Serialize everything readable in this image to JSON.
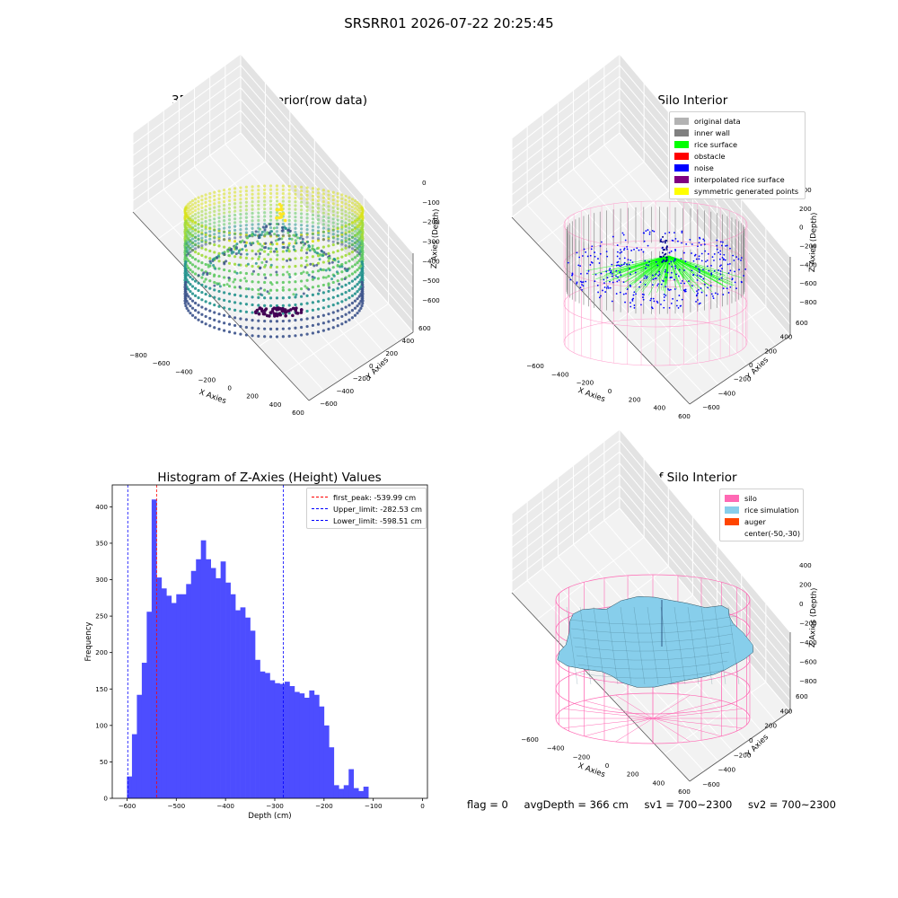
{
  "figure": {
    "suptitle": "SRSRR01 2026-07-22 20:25:45"
  },
  "panels": {
    "raw": {
      "title": "3D Plot of Silo Interior(row data)",
      "xlabel": "X Axies",
      "ylabel": "Y Axies",
      "zlabel": "Z Axies (Depth)",
      "xticks": [
        "−800",
        "−600",
        "−400",
        "−200",
        "0",
        "200",
        "400",
        "600"
      ],
      "yticks": [
        "−600",
        "−400",
        "−200",
        "0",
        "200",
        "400",
        "600"
      ],
      "zticks": [
        "0",
        "−100",
        "−200",
        "−300",
        "−400",
        "−500",
        "−600"
      ]
    },
    "classify": {
      "title": "3D classify of Silo Interior",
      "xlabel": "X Axies",
      "ylabel": "Y Axies",
      "zlabel": "Z Axies (Depth)",
      "xticks": [
        "−600",
        "−400",
        "−200",
        "0",
        "200",
        "400",
        "600"
      ],
      "yticks": [
        "−600",
        "−400",
        "−200",
        "0",
        "200",
        "400",
        "600"
      ],
      "zticks": [
        "400",
        "200",
        "0",
        "−200",
        "−400",
        "−600",
        "−800"
      ],
      "legend": [
        {
          "label": "original data",
          "color": "#b3b3b3"
        },
        {
          "label": "inner wall",
          "color": "#808080"
        },
        {
          "label": "rice surface",
          "color": "#00ff00"
        },
        {
          "label": "obstacle",
          "color": "#ff0000"
        },
        {
          "label": "noise",
          "color": "#0000ff"
        },
        {
          "label": "interpolated rice surface",
          "color": "#800080"
        },
        {
          "label": "symmetric generated points",
          "color": "#ffff00"
        }
      ]
    },
    "histogram": {
      "title": "Histogram of Z-Axies (Height) Values",
      "xlabel": "Depth (cm)",
      "ylabel": "Frequency",
      "legend": [
        {
          "label": "first_peak: -539.99 cm",
          "color": "#ff0000"
        },
        {
          "label": "Upper_limit: -282.53 cm",
          "color": "#0000ff"
        },
        {
          "label": "Lower_limit: -598.51 cm",
          "color": "#0000ff"
        }
      ]
    },
    "simulation": {
      "title": "3D simulation of Silo Interior",
      "xlabel": "X Axies",
      "ylabel": "Y Axies",
      "zlabel": "Z Axies (Depth)",
      "xticks": [
        "−600",
        "−400",
        "−200",
        "0",
        "200",
        "400",
        "600"
      ],
      "yticks": [
        "−600",
        "−400",
        "−200",
        "0",
        "200",
        "400",
        "600"
      ],
      "zticks": [
        "400",
        "200",
        "0",
        "−200",
        "−400",
        "−600",
        "−800"
      ],
      "legend": [
        {
          "label": "silo",
          "color": "#ff69b4"
        },
        {
          "label": "rice simulation",
          "color": "#87ceeb"
        },
        {
          "label": "auger",
          "color": "#ff4500"
        },
        {
          "label": "center(-50,-30)",
          "color": ""
        }
      ]
    }
  },
  "status": {
    "flag": "flag = 0",
    "avg_depth": "avgDepth = 366 cm",
    "sv1": "sv1 = 700~2300",
    "sv2": "sv2 = 700~2300"
  },
  "colors": {
    "histogram_bar": "#4d4dff",
    "first_peak_line": "#ff0000",
    "limit_line": "#0000ff",
    "silo_wire": "#ff69b4",
    "rice_surface": "#87ceeb"
  },
  "chart_data": [
    {
      "type": "scatter",
      "title": "3D Plot of Silo Interior(row data)",
      "xlabel": "X Axies",
      "ylabel": "Y Axies",
      "zlabel": "Z Axies (Depth)",
      "xlim": [
        -800,
        600
      ],
      "ylim": [
        -600,
        600
      ],
      "zlim": [
        -650,
        0
      ],
      "colormap": "viridis"
    },
    {
      "type": "scatter",
      "title": "3D classify of Silo Interior",
      "xlabel": "X Axies",
      "ylabel": "Y Axies",
      "zlabel": "Z Axies (Depth)",
      "xlim": [
        -700,
        600
      ],
      "ylim": [
        -600,
        600
      ],
      "zlim": [
        -800,
        400
      ],
      "legend_position": "top-right"
    },
    {
      "type": "bar",
      "title": "Histogram of Z-Axies (Height) Values",
      "xlabel": "Depth (cm)",
      "ylabel": "Frequency",
      "xlim": [
        -630,
        10
      ],
      "ylim": [
        0,
        430
      ],
      "bin_width": 10,
      "bin_start": -600,
      "values": [
        30,
        88,
        142,
        186,
        256,
        410,
        303,
        288,
        278,
        268,
        280,
        280,
        294,
        312,
        328,
        354,
        328,
        316,
        302,
        325,
        296,
        280,
        258,
        262,
        248,
        230,
        190,
        174,
        172,
        162,
        158,
        157,
        160,
        154,
        146,
        144,
        138,
        148,
        142,
        126,
        100,
        70,
        18,
        13,
        18,
        40,
        14,
        10,
        16
      ],
      "xticks": [
        -600,
        -500,
        -400,
        -300,
        -200,
        -100,
        0
      ],
      "yticks": [
        0,
        50,
        100,
        150,
        200,
        250,
        300,
        350,
        400
      ],
      "vlines": [
        {
          "name": "first_peak: -539.99 cm",
          "x": -539.99,
          "color": "#ff0000"
        },
        {
          "name": "Upper_limit: -282.53 cm",
          "x": -282.53,
          "color": "#0000ff"
        },
        {
          "name": "Lower_limit: -598.51 cm",
          "x": -598.51,
          "color": "#0000ff"
        }
      ],
      "legend_position": "top-right"
    },
    {
      "type": "area",
      "title": "3D simulation of Silo Interior",
      "xlabel": "X Axies",
      "ylabel": "Y Axies",
      "zlabel": "Z Axies (Depth)",
      "xlim": [
        -700,
        600
      ],
      "ylim": [
        -600,
        600
      ],
      "zlim": [
        -800,
        400
      ],
      "legend_position": "top-right"
    }
  ]
}
